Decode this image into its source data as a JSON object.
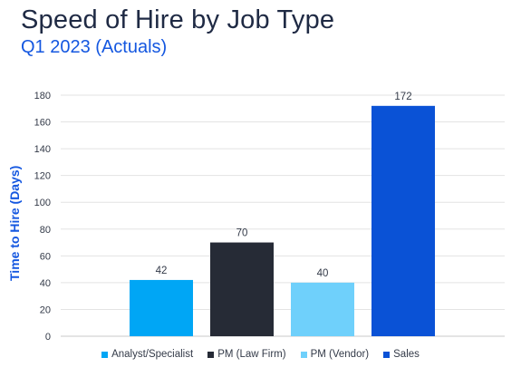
{
  "chart_data": {
    "type": "bar",
    "title": "Speed of Hire by Job Type",
    "subtitle": "Q1 2023 (Actuals)",
    "xlabel": "",
    "ylabel": "Time to Hire (Days)",
    "ylim": [
      0,
      180
    ],
    "yticks": [
      0,
      20,
      40,
      60,
      80,
      100,
      120,
      140,
      160,
      180
    ],
    "grid": true,
    "legend_position": "bottom",
    "categories": [
      "Analyst/Specialist",
      "PM (Law Firm)",
      "PM (Vendor)",
      "Sales"
    ],
    "values": [
      42,
      70,
      40,
      172
    ],
    "colors": [
      "#00a6f5",
      "#262b36",
      "#6fd0fb",
      "#0a52d6"
    ],
    "data_labels": [
      "42",
      "70",
      "40",
      "172"
    ]
  }
}
